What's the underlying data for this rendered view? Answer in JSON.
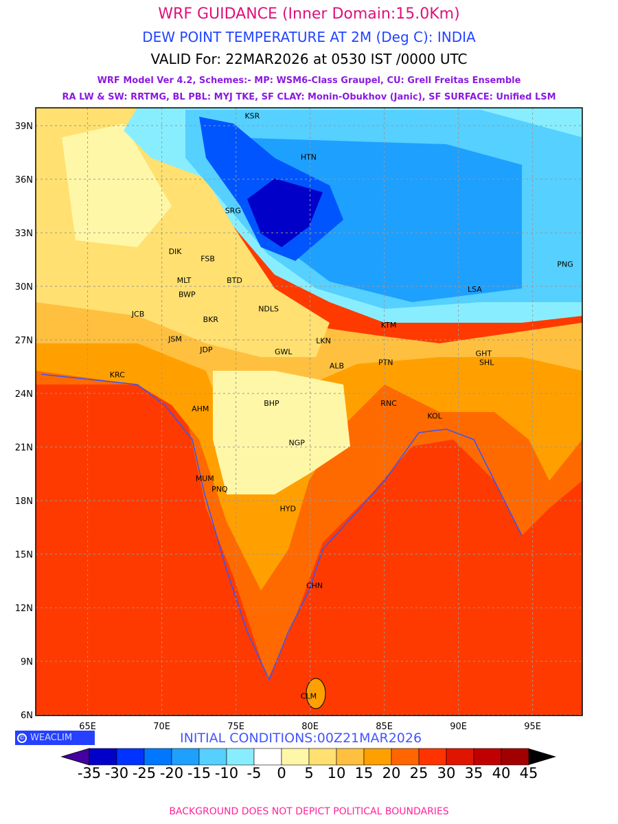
{
  "header": {
    "title": "WRF GUIDANCE (Inner Domain:15.0Km)",
    "variable": "DEW POINT TEMPERATURE AT 2M (Deg C): INDIA",
    "valid": "VALID For: 22MAR2026 at 0530 IST /0000 UTC",
    "model_line1": "WRF Model Ver 4.2, Schemes:- MP: WSM6-Class Graupel, CU: Grell Freitas Ensemble",
    "model_line2": "RA LW & SW: RRTMG, BL PBL: MYJ TKE, SF CLAY: Monin-Obukhov (Janic), SF SURFACE: Unified LSM"
  },
  "map": {
    "lon_ticks": [
      "65E",
      "70E",
      "75E",
      "80E",
      "85E",
      "90E",
      "95E"
    ],
    "lat_ticks": [
      "39N",
      "36N",
      "33N",
      "30N",
      "27N",
      "24N",
      "21N",
      "18N",
      "15N",
      "12N",
      "9N",
      "6N"
    ],
    "stations": [
      {
        "code": "KSR",
        "lon": 76.1,
        "lat": 39.4
      },
      {
        "code": "HTN",
        "lon": 79.9,
        "lat": 37.1
      },
      {
        "code": "SRG",
        "lon": 74.8,
        "lat": 34.1
      },
      {
        "code": "DIK",
        "lon": 70.9,
        "lat": 31.8
      },
      {
        "code": "FSB",
        "lon": 73.1,
        "lat": 31.4
      },
      {
        "code": "MLT",
        "lon": 71.5,
        "lat": 30.2
      },
      {
        "code": "BWP",
        "lon": 71.7,
        "lat": 29.4
      },
      {
        "code": "BTD",
        "lon": 74.9,
        "lat": 30.2
      },
      {
        "code": "JCB",
        "lon": 68.4,
        "lat": 28.3
      },
      {
        "code": "BKR",
        "lon": 73.3,
        "lat": 28.0
      },
      {
        "code": "NDLS",
        "lon": 77.2,
        "lat": 28.6
      },
      {
        "code": "JSM",
        "lon": 70.9,
        "lat": 26.9
      },
      {
        "code": "JDP",
        "lon": 73.0,
        "lat": 26.3
      },
      {
        "code": "GWL",
        "lon": 78.2,
        "lat": 26.2
      },
      {
        "code": "LKN",
        "lon": 80.9,
        "lat": 26.8
      },
      {
        "code": "KTM",
        "lon": 85.3,
        "lat": 27.7
      },
      {
        "code": "ALB",
        "lon": 81.8,
        "lat": 25.4
      },
      {
        "code": "PTN",
        "lon": 85.1,
        "lat": 25.6
      },
      {
        "code": "GHT",
        "lon": 91.7,
        "lat": 26.1
      },
      {
        "code": "SHL",
        "lon": 91.9,
        "lat": 25.6
      },
      {
        "code": "KRC",
        "lon": 67.0,
        "lat": 24.9
      },
      {
        "code": "AHM",
        "lon": 72.6,
        "lat": 23.0
      },
      {
        "code": "BHP",
        "lon": 77.4,
        "lat": 23.3
      },
      {
        "code": "RNC",
        "lon": 85.3,
        "lat": 23.3
      },
      {
        "code": "KOL",
        "lon": 88.4,
        "lat": 22.6
      },
      {
        "code": "NGP",
        "lon": 79.1,
        "lat": 21.1
      },
      {
        "code": "MUM",
        "lon": 72.9,
        "lat": 19.1
      },
      {
        "code": "PNQ",
        "lon": 73.9,
        "lat": 18.5
      },
      {
        "code": "HYD",
        "lon": 78.5,
        "lat": 17.4
      },
      {
        "code": "CHN",
        "lon": 80.3,
        "lat": 13.1
      },
      {
        "code": "CLM",
        "lon": 79.9,
        "lat": 6.9
      },
      {
        "code": "LSA",
        "lon": 91.1,
        "lat": 29.7
      },
      {
        "code": "PNG",
        "lon": 97.2,
        "lat": 31.1
      }
    ]
  },
  "colorbar": {
    "labels": [
      "-35",
      "-30",
      "-25",
      "-20",
      "-15",
      "-10",
      "-5",
      "0",
      "5",
      "10",
      "15",
      "20",
      "25",
      "30",
      "35",
      "40",
      "45"
    ],
    "colors": [
      "#0000c8",
      "#0033ff",
      "#0077ff",
      "#1ea0ff",
      "#55d0ff",
      "#88eeff",
      "#ffffff",
      "#fff7a8",
      "#ffe070",
      "#ffc040",
      "#ffa000",
      "#ff6600",
      "#ff3300",
      "#e01500",
      "#c00000",
      "#a00000"
    ],
    "under_color": "#4400a0",
    "over_color": "#000000"
  },
  "logo": {
    "text": "WEACLIM",
    "symbol": "©"
  },
  "initial_conditions": "INITIAL CONDITIONS:00Z21MAR2026",
  "footer": "BACKGROUND DOES NOT DEPICT POLITICAL BOUNDARIES"
}
